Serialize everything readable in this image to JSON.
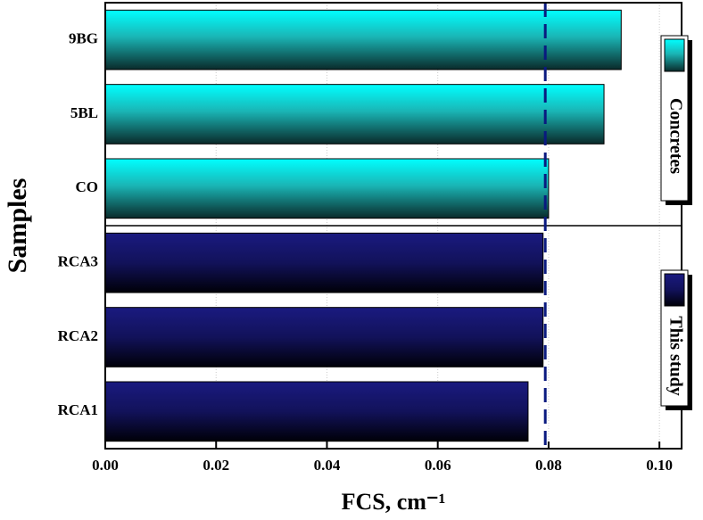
{
  "chart_data": {
    "type": "barh",
    "xlabel": "FCS, cm⁻¹",
    "ylabel": "Samples",
    "categories": [
      "RCA1",
      "RCA2",
      "RCA3",
      "CO",
      "5BL",
      "9BG"
    ],
    "series": [
      {
        "name": "This study",
        "color": "#1a1a80",
        "values": [
          0.0763,
          0.079,
          0.079,
          null,
          null,
          null
        ]
      },
      {
        "name": "Concretes",
        "color": "#00ffff",
        "values": [
          null,
          null,
          null,
          0.08,
          0.09,
          0.0931
        ]
      }
    ],
    "reference_line": 0.0794,
    "xlim": [
      0,
      0.104
    ],
    "xticks": [
      {
        "value": 0,
        "label": "0.00"
      },
      {
        "value": 0.02,
        "label": "0.02"
      },
      {
        "value": 0.04,
        "label": "0.04"
      },
      {
        "value": 0.06,
        "label": "0.06"
      },
      {
        "value": 0.08,
        "label": "0.08"
      },
      {
        "value": 0.1,
        "label": "0.10"
      }
    ],
    "grid": true
  }
}
